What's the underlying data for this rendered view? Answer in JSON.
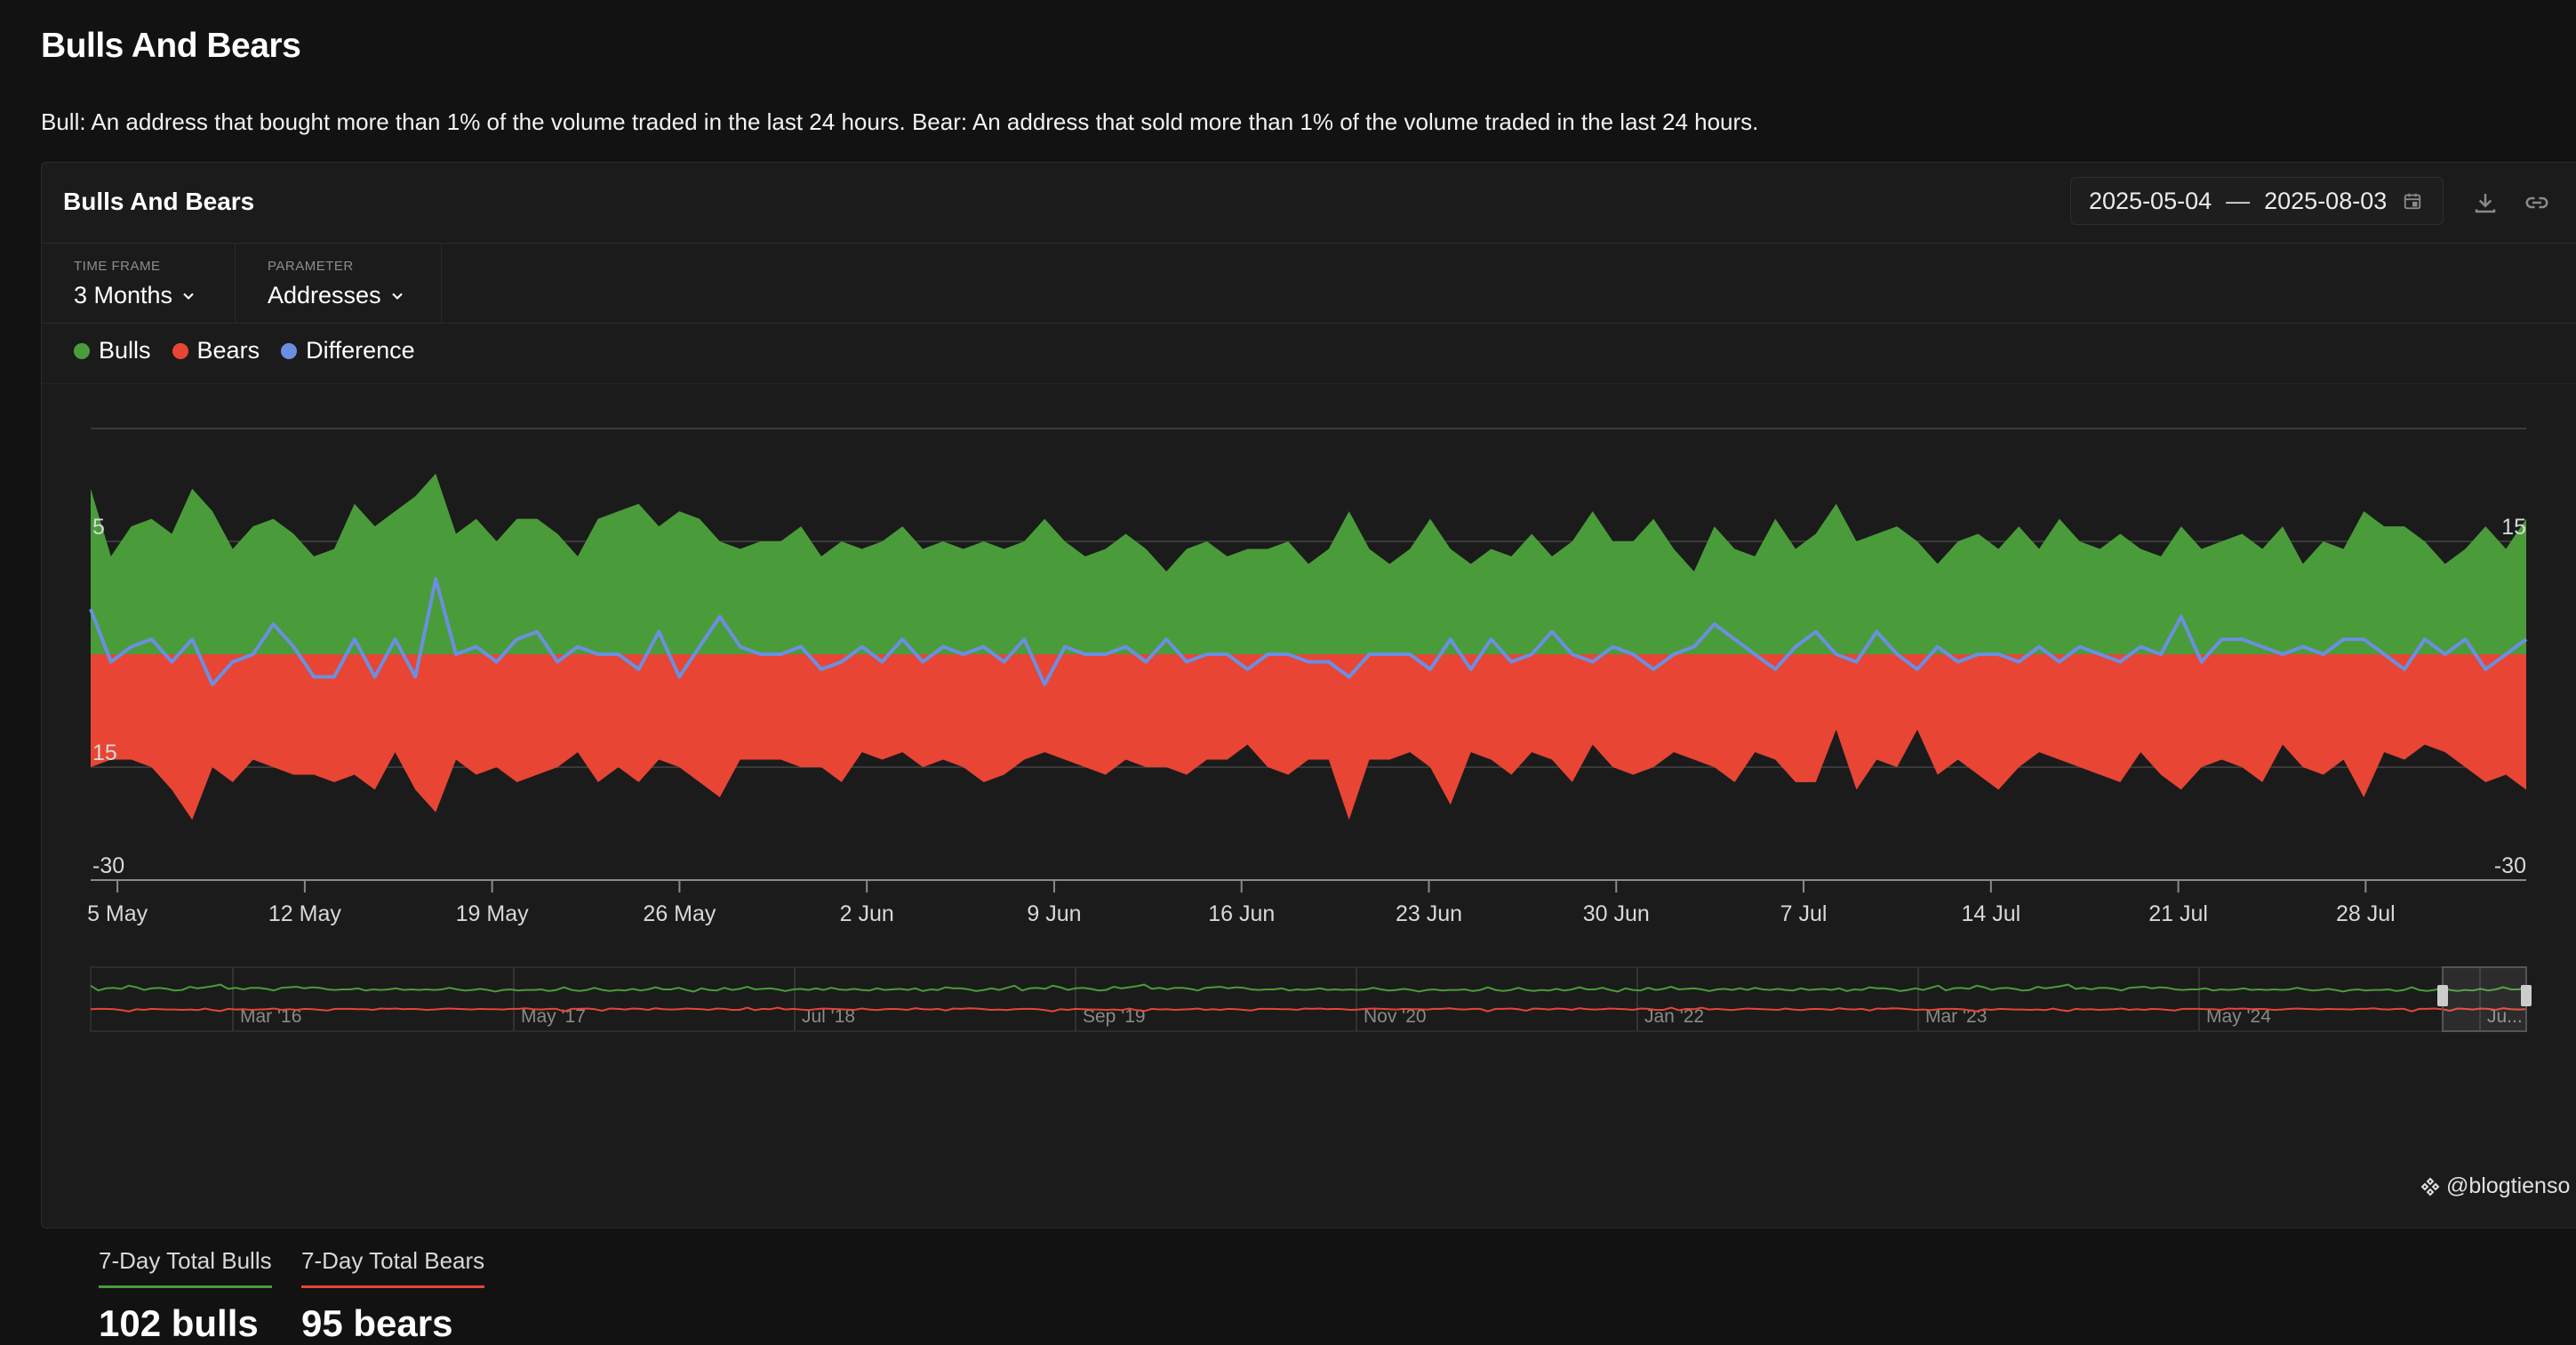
{
  "page": {
    "title": "Bulls And Bears",
    "description": "Bull: An address that bought more than 1% of the volume traded in the last 24 hours. Bear: An address that sold more than 1% of the volume traded in the last 24 hours."
  },
  "card": {
    "title": "Bulls And Bears",
    "date_start": "2025-05-04",
    "date_sep": "—",
    "date_end": "2025-08-03",
    "icons": [
      "calendar-icon",
      "download-icon",
      "link-icon"
    ]
  },
  "controls": {
    "timeframe_label": "TIME FRAME",
    "timeframe_value": "3 Months",
    "parameter_label": "PARAMETER",
    "parameter_value": "Addresses"
  },
  "legend": [
    {
      "label": "Bulls",
      "color": "#4a9c3a"
    },
    {
      "label": "Bears",
      "color": "#e84535"
    },
    {
      "label": "Difference",
      "color": "#6b8fe0"
    }
  ],
  "chart_data": {
    "type": "area",
    "x_ticks": [
      "5 May",
      "12 May",
      "19 May",
      "26 May",
      "2 Jun",
      "9 Jun",
      "16 Jun",
      "23 Jun",
      "30 Jun",
      "7 Jul",
      "14 Jul",
      "21 Jul",
      "28 Jul"
    ],
    "y_tick_labels_left": [
      "5",
      "15",
      "-30"
    ],
    "y_tick_labels_right": [
      "15",
      "-30"
    ],
    "ylim": [
      -30,
      30
    ],
    "x_range": [
      "2025-05-04",
      "2025-08-03"
    ],
    "grid": true,
    "series": [
      {
        "name": "Bulls",
        "color": "#4a9c3a",
        "values": [
          22,
          13,
          17,
          18,
          16,
          22,
          19,
          14,
          17,
          18,
          16,
          13,
          14,
          20,
          17,
          19,
          21,
          24,
          16,
          18,
          15,
          18,
          18,
          16,
          13,
          18,
          19,
          20,
          17,
          19,
          18,
          15,
          14,
          15,
          15,
          17,
          13,
          15,
          14,
          15,
          17,
          14,
          15,
          14,
          15,
          14,
          15,
          18,
          15,
          13,
          14,
          16,
          14,
          11,
          14,
          15,
          13,
          14,
          14,
          15,
          12,
          14,
          19,
          14,
          12,
          14,
          18,
          14,
          12,
          14,
          13,
          16,
          13,
          15,
          19,
          15,
          15,
          18,
          14,
          11,
          17,
          14,
          13,
          18,
          14,
          16,
          20,
          15,
          16,
          17,
          15,
          12,
          15,
          16,
          14,
          17,
          14,
          18,
          15,
          14,
          16,
          14,
          13,
          17,
          14,
          15,
          16,
          14,
          17,
          12,
          15,
          14,
          19,
          17,
          17,
          15,
          12,
          14,
          17,
          14,
          18
        ],
        "smooth": false
      },
      {
        "name": "Bears",
        "color": "#e84535",
        "values": [
          -15,
          -14,
          -14,
          -15,
          -18,
          -22,
          -15,
          -17,
          -14,
          -15,
          -16,
          -16,
          -17,
          -16,
          -18,
          -13,
          -18,
          -21,
          -14,
          -16,
          -15,
          -17,
          -16,
          -15,
          -13,
          -17,
          -15,
          -17,
          -14,
          -15,
          -17,
          -19,
          -14,
          -14,
          -14,
          -15,
          -15,
          -17,
          -13,
          -14,
          -13,
          -15,
          -14,
          -15,
          -17,
          -16,
          -14,
          -13,
          -14,
          -15,
          -16,
          -14,
          -15,
          -15,
          -16,
          -14,
          -14,
          -12,
          -15,
          -16,
          -14,
          -14,
          -22,
          -14,
          -14,
          -13,
          -15,
          -20,
          -13,
          -14,
          -16,
          -13,
          -14,
          -17,
          -12,
          -15,
          -16,
          -15,
          -13,
          -14,
          -15,
          -17,
          -13,
          -14,
          -17,
          -17,
          -10,
          -18,
          -14,
          -15,
          -10,
          -16,
          -14,
          -16,
          -18,
          -15,
          -13,
          -14,
          -15,
          -16,
          -17,
          -13,
          -16,
          -18,
          -15,
          -14,
          -15,
          -17,
          -12,
          -15,
          -16,
          -14,
          -19,
          -13,
          -14,
          -12,
          -13,
          -15,
          -17,
          -16,
          -18
        ],
        "smooth": false
      },
      {
        "name": "Difference",
        "color": "#6b8fe0",
        "values": [
          6,
          -1,
          1,
          2,
          -1,
          2,
          -4,
          -1,
          0,
          4,
          1,
          -3,
          -3,
          2,
          -3,
          2,
          -3,
          10,
          0,
          1,
          -1,
          2,
          3,
          -1,
          1,
          0,
          0,
          -2,
          3,
          -3,
          1,
          5,
          1,
          0,
          0,
          1,
          -2,
          -1,
          1,
          -1,
          2,
          -1,
          1,
          0,
          1,
          -1,
          2,
          -4,
          1,
          0,
          0,
          1,
          -1,
          2,
          -1,
          0,
          0,
          -2,
          0,
          0,
          -1,
          -1,
          -3,
          0,
          0,
          0,
          -2,
          2,
          -2,
          2,
          -1,
          0,
          3,
          0,
          -1,
          1,
          0,
          -2,
          0,
          1,
          4,
          2,
          0,
          -2,
          1,
          3,
          0,
          -1,
          3,
          0,
          -2,
          1,
          -1,
          0,
          0,
          -1,
          1,
          -1,
          1,
          0,
          -1,
          1,
          0,
          5,
          -1,
          2,
          2,
          1,
          0,
          1,
          0,
          2,
          2,
          0,
          -2,
          2,
          0,
          2,
          -2,
          0,
          2
        ]
      }
    ]
  },
  "navigator": {
    "labels": [
      "Mar '16",
      "May '17",
      "Jul '18",
      "Sep '19",
      "Nov '20",
      "Jan '22",
      "Mar '23",
      "May '24",
      "Ju..."
    ]
  },
  "stats": {
    "bulls_label": "7-Day Total Bulls",
    "bulls_value": "102 bulls",
    "bears_label": "7-Day Total Bears",
    "bears_value": "95 bears"
  },
  "watermark": "@blogtienso"
}
